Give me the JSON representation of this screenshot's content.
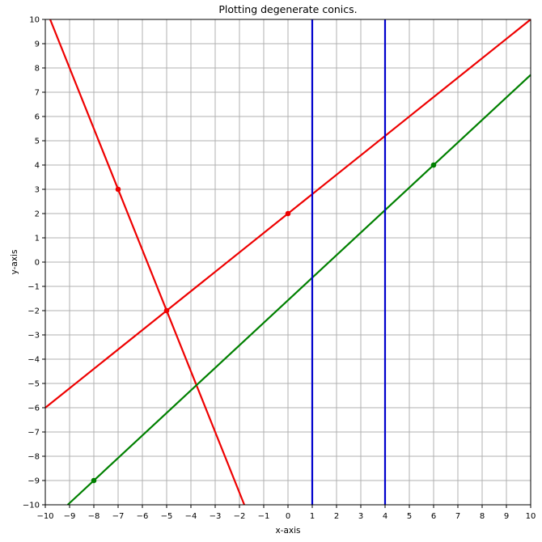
{
  "figure": {
    "title": "Plotting degenerate conics.",
    "xlabel": "x-axis",
    "ylabel": "y-axis"
  },
  "colors": {
    "red_line": "#ee0000",
    "green_line": "#008000",
    "blue_line": "#0000cd",
    "grid": "#b0b0b0",
    "axis": "#000000",
    "background": "#ffffff"
  },
  "chart_data": {
    "type": "line",
    "title": "Plotting degenerate conics.",
    "xlabel": "x-axis",
    "ylabel": "y-axis",
    "xlim": [
      -10,
      10
    ],
    "ylim": [
      -10,
      10
    ],
    "xticks": [
      -10,
      -9,
      -8,
      -7,
      -6,
      -5,
      -4,
      -3,
      -2,
      -1,
      0,
      1,
      2,
      3,
      4,
      5,
      6,
      7,
      8,
      9,
      10
    ],
    "yticks": [
      -10,
      -9,
      -8,
      -7,
      -6,
      -5,
      -4,
      -3,
      -2,
      -1,
      0,
      1,
      2,
      3,
      4,
      5,
      6,
      7,
      8,
      9,
      10
    ],
    "grid": true,
    "legend": "none",
    "series": [
      {
        "name": "red-line-positive-slope",
        "color": "#ee0000",
        "width": 2.2,
        "points": [
          [
            -10,
            -6
          ],
          [
            10,
            10
          ]
        ]
      },
      {
        "name": "red-line-negative-slope",
        "color": "#ee0000",
        "width": 2.2,
        "points": [
          [
            -9.8,
            10
          ],
          [
            -1.8,
            -10
          ]
        ]
      },
      {
        "name": "green-line",
        "color": "#008000",
        "width": 2.2,
        "points": [
          [
            -9.077,
            -10
          ],
          [
            10,
            7.714
          ]
        ]
      },
      {
        "name": "blue-vertical-line-x1",
        "color": "#0000cd",
        "width": 2.2,
        "points": [
          [
            1,
            -10
          ],
          [
            1,
            10
          ]
        ]
      },
      {
        "name": "blue-vertical-line-x4",
        "color": "#0000cd",
        "width": 2.2,
        "points": [
          [
            4,
            -10
          ],
          [
            4,
            10
          ]
        ]
      }
    ],
    "markers": [
      {
        "x": -7,
        "y": 3,
        "color": "#ee0000"
      },
      {
        "x": -5,
        "y": -2,
        "color": "#ee0000"
      },
      {
        "x": 0,
        "y": 2,
        "color": "#ee0000"
      },
      {
        "x": -8,
        "y": -9,
        "color": "#008000"
      },
      {
        "x": 6,
        "y": 4,
        "color": "#008000"
      }
    ]
  }
}
